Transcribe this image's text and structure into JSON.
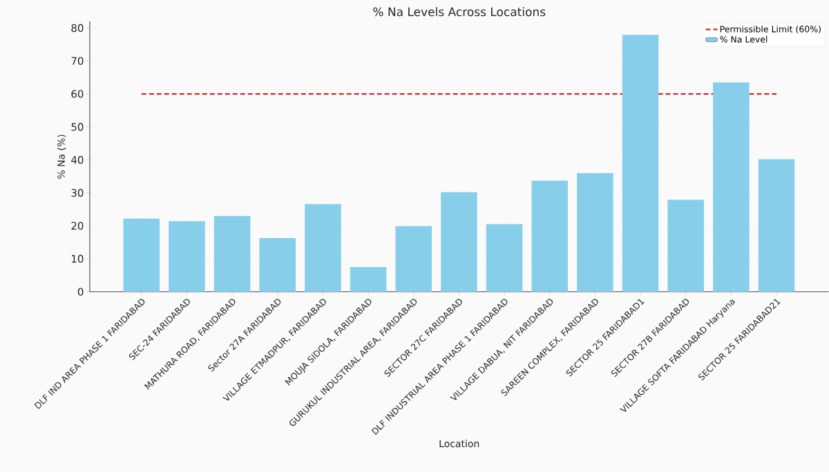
{
  "chart_data": {
    "type": "bar",
    "title": "% Na Levels Across Locations",
    "xlabel": "Location",
    "ylabel": "% Na (%)",
    "categories": [
      "DLF IND AREA PHASE 1 FARIDABAD",
      "SEC-24 FARIDABAD",
      "MATHURA ROAD, FARIDABAD",
      "Sector 27A FARIDABAD",
      "VILLAGE ETMADPUR, FARIDABAD",
      "MOUJA SIDOLA, FARIDABAD",
      "GURUKUL INDUSTRIAL AREA, FARIDABAD",
      "SECTOR 27C FARIDABAD",
      "DLF INDUSTRIAL AREA PHASE 1 FARIDABAD",
      "VILLAGE DABUA, NIT FARIDABAD",
      "SAREEN COMPLEX, FARIDABAD",
      "SECTOR 25 FARIDABAD1",
      "SECTOR 27B FARIDABAD",
      "VILLAGE SOFTA FARIDABAD Haryana",
      "SECTOR 25 FARIDABAD21"
    ],
    "series": [
      {
        "name": "% Na Level",
        "color": "#87ceeb",
        "values": [
          22.2,
          21.4,
          23.0,
          16.3,
          26.6,
          7.5,
          19.9,
          30.2,
          20.5,
          33.7,
          36.0,
          77.9,
          27.9,
          63.5,
          40.2
        ]
      }
    ],
    "ref_lines": [
      {
        "axis": "y",
        "value": 60,
        "label": "Permissible Limit (60%)",
        "color": "#d62728",
        "line_style": "dashed"
      }
    ],
    "ylim": [
      0,
      82
    ],
    "yticks": [
      0,
      10,
      20,
      30,
      40,
      50,
      60,
      70,
      80
    ],
    "grid": true,
    "legend": "top right"
  }
}
